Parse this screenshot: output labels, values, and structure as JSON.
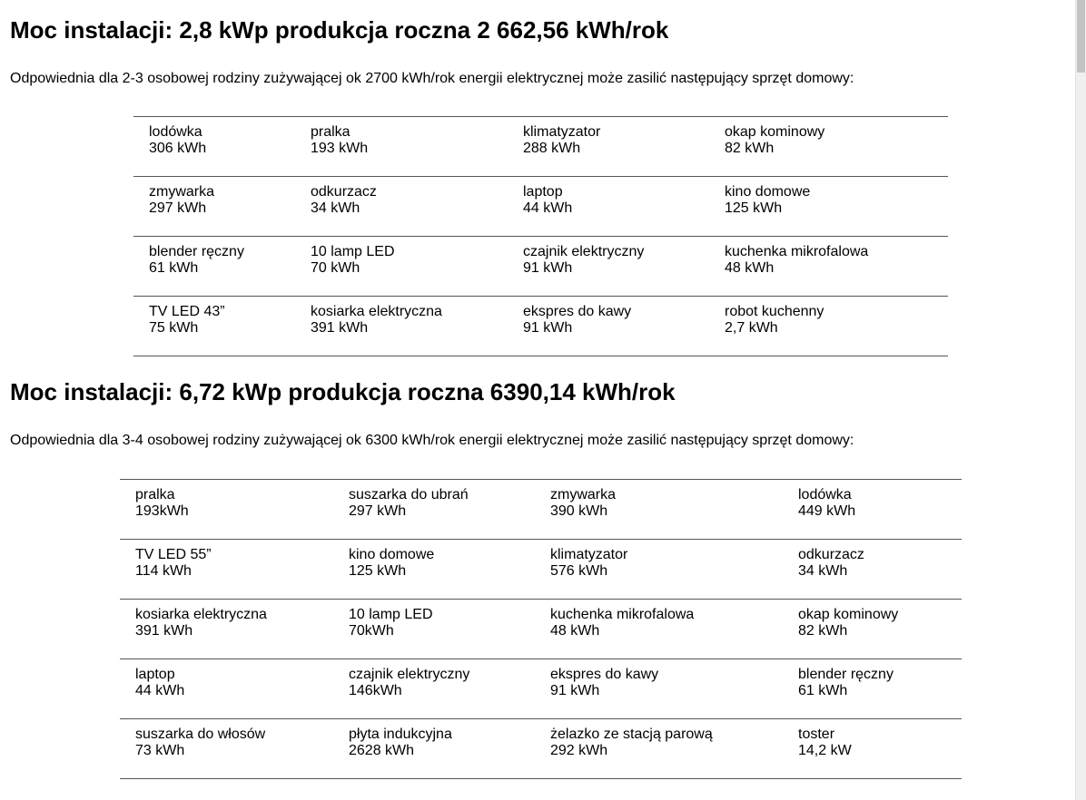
{
  "sections": [
    {
      "title": "Moc instalacji: 2,8 kWp produkcja roczna 2 662,56 kWh/rok",
      "intro": "Odpowiednia dla 2-3 osobowej rodziny zużywającej ok 2700 kWh/rok energii elektrycznej może zasilić następujący sprzęt domowy:",
      "rows": [
        [
          {
            "name": "lodówka",
            "value": "306 kWh"
          },
          {
            "name": "pralka",
            "value": "193 kWh"
          },
          {
            "name": "klimatyzator",
            "value": "288 kWh"
          },
          {
            "name": "okap kominowy",
            "value": "82 kWh"
          }
        ],
        [
          {
            "name": "zmywarka",
            "value": "297 kWh"
          },
          {
            "name": "odkurzacz",
            "value": "34 kWh"
          },
          {
            "name": "laptop",
            "value": "44 kWh"
          },
          {
            "name": "kino domowe",
            "value": "125 kWh"
          }
        ],
        [
          {
            "name": "blender ręczny",
            "value": "61 kWh"
          },
          {
            "name": "10 lamp LED",
            "value": "70 kWh"
          },
          {
            "name": "czajnik elektryczny",
            "value": "91 kWh"
          },
          {
            "name": "kuchenka mikrofalowa",
            "value": "48 kWh"
          }
        ],
        [
          {
            "name": "TV LED 43”",
            "value": "75 kWh"
          },
          {
            "name": "kosiarka elektryczna",
            "value": "391 kWh"
          },
          {
            "name": "ekspres do kawy",
            "value": "91 kWh"
          },
          {
            "name": "robot kuchenny",
            "value": "2,7 kWh"
          }
        ]
      ]
    },
    {
      "title": "Moc instalacji: 6,72 kWp produkcja roczna 6390,14 kWh/rok",
      "intro": "Odpowiednia dla 3-4 osobowej rodziny zużywającej ok 6300 kWh/rok energii elektrycznej może zasilić następujący sprzęt domowy:",
      "rows": [
        [
          {
            "name": "pralka",
            "value": "193kWh"
          },
          {
            "name": "suszarka do ubrań",
            "value": "297 kWh"
          },
          {
            "name": "zmywarka",
            "value": "390 kWh"
          },
          {
            "name": "lodówka",
            "value": "449 kWh"
          }
        ],
        [
          {
            "name": "TV LED 55”",
            "value": "114 kWh"
          },
          {
            "name": "kino domowe",
            "value": "125 kWh"
          },
          {
            "name": "klimatyzator",
            "value": "576 kWh"
          },
          {
            "name": "odkurzacz",
            "value": "34 kWh"
          }
        ],
        [
          {
            "name": "kosiarka elektryczna",
            "value": "391 kWh"
          },
          {
            "name": "10 lamp LED",
            "value": "70kWh"
          },
          {
            "name": "kuchenka mikrofalowa",
            "value": "48 kWh"
          },
          {
            "name": "okap kominowy",
            "value": "82 kWh"
          }
        ],
        [
          {
            "name": "laptop",
            "value": "44 kWh"
          },
          {
            "name": "czajnik elektryczny",
            "value": "146kWh"
          },
          {
            "name": "ekspres do kawy",
            "value": "91 kWh"
          },
          {
            "name": "blender ręczny",
            "value": "61 kWh"
          }
        ],
        [
          {
            "name": "suszarka do włosów",
            "value": "73 kWh"
          },
          {
            "name": "płyta indukcyjna",
            "value": "2628 kWh"
          },
          {
            "name": "żelazko ze stacją parową",
            "value": "292 kWh"
          },
          {
            "name": "toster",
            "value": "14,2 kW"
          }
        ]
      ]
    }
  ]
}
